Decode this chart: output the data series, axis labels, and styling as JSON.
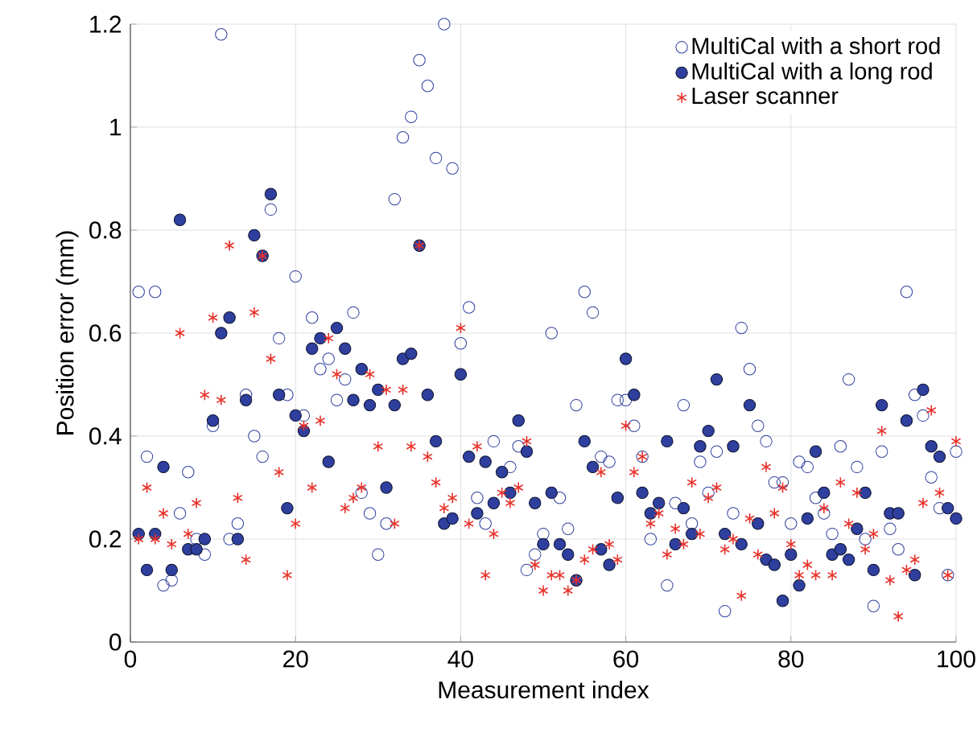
{
  "chart_data": {
    "type": "scatter",
    "xlabel": "Measurement index",
    "ylabel": "Position error (mm)",
    "x": [
      1,
      2,
      3,
      4,
      5,
      6,
      7,
      8,
      9,
      10,
      11,
      12,
      13,
      14,
      15,
      16,
      17,
      18,
      19,
      20,
      21,
      22,
      23,
      24,
      25,
      26,
      27,
      28,
      29,
      30,
      31,
      32,
      33,
      34,
      35,
      36,
      37,
      38,
      39,
      40,
      41,
      42,
      43,
      44,
      45,
      46,
      47,
      48,
      49,
      50,
      51,
      52,
      53,
      54,
      55,
      56,
      57,
      58,
      59,
      60,
      61,
      62,
      63,
      64,
      65,
      66,
      67,
      68,
      69,
      70,
      71,
      72,
      73,
      74,
      75,
      76,
      77,
      78,
      79,
      80,
      81,
      82,
      83,
      84,
      85,
      86,
      87,
      88,
      89,
      90,
      91,
      92,
      93,
      94,
      95,
      96,
      97,
      98,
      99,
      100
    ],
    "xlim": [
      0,
      100
    ],
    "xticks": [
      0,
      20,
      40,
      60,
      80,
      100
    ],
    "ylim": [
      0,
      1.2
    ],
    "yticks": [
      0,
      0.2,
      0.4,
      0.6,
      0.8,
      1,
      1.2
    ],
    "grid": true,
    "legend": "top right",
    "series": [
      {
        "name": "MultiCal with a short rod",
        "color": "#2e3f9e",
        "marker": "circle",
        "values": [
          0.68,
          0.36,
          0.68,
          0.11,
          0.12,
          0.25,
          0.33,
          0.2,
          0.17,
          0.42,
          1.18,
          0.2,
          0.23,
          0.48,
          0.4,
          0.36,
          0.84,
          0.59,
          0.48,
          0.71,
          0.44,
          0.63,
          0.53,
          0.55,
          0.47,
          0.51,
          0.64,
          0.29,
          0.25,
          0.17,
          0.23,
          0.86,
          0.98,
          1.02,
          1.13,
          1.08,
          0.94,
          1.2,
          0.92,
          0.58,
          0.65,
          0.28,
          0.23,
          0.39,
          null,
          0.34,
          0.38,
          0.14,
          0.17,
          0.21,
          0.6,
          0.28,
          0.22,
          0.46,
          0.68,
          0.64,
          0.36,
          0.35,
          0.47,
          0.47,
          0.42,
          0.36,
          0.2,
          null,
          0.11,
          0.27,
          0.46,
          0.23,
          0.35,
          0.29,
          0.37,
          0.06,
          0.25,
          0.61,
          0.53,
          0.42,
          0.39,
          0.31,
          0.31,
          0.23,
          0.35,
          0.34,
          0.28,
          0.25,
          0.21,
          0.38,
          0.51,
          0.34,
          0.2,
          0.07,
          0.37,
          0.22,
          0.18,
          0.68,
          0.48,
          0.44,
          0.32,
          0.26,
          0.13,
          0.37
        ]
      },
      {
        "name": "MultiCal with a long rod",
        "color": "#2e3f9e",
        "marker": "circle",
        "values": [
          0.21,
          0.14,
          0.21,
          0.34,
          0.14,
          0.82,
          0.18,
          0.18,
          0.2,
          0.43,
          0.6,
          0.63,
          0.2,
          0.47,
          0.79,
          0.75,
          0.87,
          0.48,
          0.26,
          0.44,
          0.41,
          0.57,
          0.59,
          0.35,
          0.61,
          0.57,
          0.47,
          0.53,
          0.46,
          0.49,
          0.3,
          0.46,
          0.55,
          0.56,
          0.77,
          0.48,
          0.39,
          0.23,
          0.24,
          0.52,
          0.36,
          0.25,
          0.35,
          0.27,
          0.33,
          0.29,
          0.43,
          0.37,
          0.27,
          0.19,
          0.29,
          0.19,
          0.17,
          0.12,
          0.39,
          0.34,
          0.18,
          0.15,
          0.28,
          0.55,
          0.48,
          0.29,
          0.25,
          0.27,
          0.39,
          0.19,
          0.26,
          0.21,
          0.38,
          0.41,
          0.51,
          0.21,
          0.38,
          0.19,
          0.46,
          0.23,
          0.16,
          0.15,
          0.08,
          0.17,
          0.11,
          0.24,
          0.37,
          0.29,
          0.17,
          0.18,
          0.16,
          0.22,
          0.29,
          0.14,
          0.46,
          0.25,
          0.25,
          0.43,
          0.13,
          0.49,
          0.38,
          0.36,
          0.26,
          0.24
        ]
      },
      {
        "name": "Laser scanner",
        "color": "#e8312a",
        "marker": "cross",
        "values": [
          0.2,
          0.3,
          0.2,
          0.25,
          0.19,
          0.6,
          0.21,
          0.27,
          0.48,
          0.63,
          0.47,
          0.77,
          0.28,
          0.16,
          0.64,
          0.75,
          0.55,
          0.33,
          0.13,
          0.23,
          0.42,
          0.3,
          0.43,
          0.59,
          0.52,
          0.26,
          0.28,
          0.3,
          0.52,
          0.38,
          0.49,
          0.23,
          0.49,
          0.38,
          0.77,
          0.36,
          0.31,
          0.26,
          0.28,
          0.61,
          0.23,
          0.38,
          0.13,
          0.21,
          0.29,
          0.27,
          0.3,
          0.39,
          0.15,
          0.1,
          0.13,
          0.13,
          0.1,
          0.12,
          0.16,
          0.18,
          0.33,
          0.19,
          0.16,
          0.42,
          0.33,
          0.36,
          0.23,
          0.25,
          0.17,
          0.22,
          0.19,
          0.31,
          0.21,
          0.28,
          0.3,
          0.18,
          0.2,
          0.09,
          0.24,
          0.17,
          0.34,
          0.25,
          0.3,
          0.19,
          0.13,
          0.15,
          0.13,
          0.26,
          0.13,
          0.31,
          0.23,
          0.29,
          0.18,
          0.21,
          0.41,
          0.12,
          0.05,
          0.14,
          0.16,
          0.27,
          0.45,
          0.29,
          0.13,
          0.39
        ]
      }
    ]
  }
}
